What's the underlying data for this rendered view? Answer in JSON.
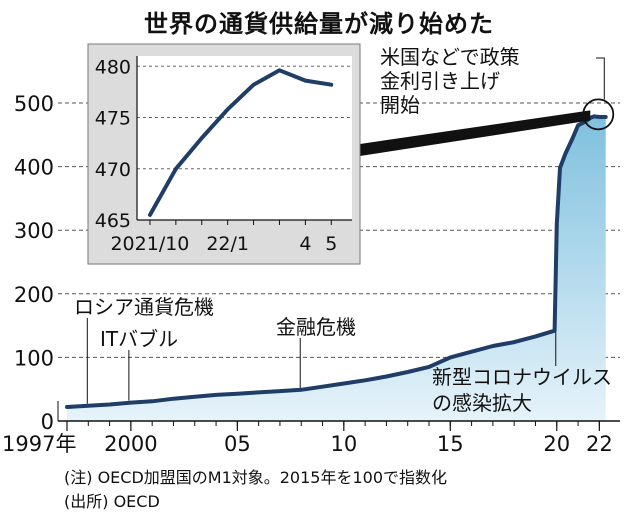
{
  "title": "世界の通貨供給量が減り始めた",
  "notes": {
    "note": "(注) OECD加盟国のM1対象。2015年を100で指数化",
    "source": "(出所) OECD"
  },
  "chart_data": [
    {
      "type": "area",
      "title": "世界の通貨供給量が減り始めた",
      "xlabel": "",
      "ylabel": "",
      "xlim": [
        1997,
        2022.5
      ],
      "ylim": [
        0,
        500
      ],
      "grid": true,
      "yticks": [
        0,
        100,
        200,
        300,
        400,
        500
      ],
      "xticks": [
        {
          "value": 1997,
          "label": "1997年"
        },
        {
          "value": 2000,
          "label": "2000"
        },
        {
          "value": 2005,
          "label": "05"
        },
        {
          "value": 2010,
          "label": "10"
        },
        {
          "value": 2015,
          "label": "15"
        },
        {
          "value": 2020,
          "label": "20"
        },
        {
          "value": 2022,
          "label": "22"
        }
      ],
      "series": [
        {
          "name": "OECD M1 (2015=100)",
          "x": [
            1997,
            1998,
            1999,
            2000,
            2001,
            2002,
            2003,
            2004,
            2005,
            2006,
            2007,
            2008,
            2009,
            2010,
            2011,
            2012,
            2013,
            2014,
            2015,
            2016,
            2017,
            2018,
            2019,
            2019.9,
            2020.0,
            2020.15,
            2020.4,
            2020.75,
            2021.0,
            2021.3,
            2021.6,
            2021.75,
            2022.0,
            2022.3
          ],
          "values": [
            22,
            24,
            26,
            29,
            31,
            35,
            38,
            41,
            43,
            45,
            47,
            49,
            54,
            59,
            64,
            70,
            77,
            85,
            100,
            109,
            118,
            124,
            133,
            142,
            310,
            398,
            420,
            445,
            465,
            470,
            477,
            479,
            478,
            478
          ]
        }
      ],
      "annotations": [
        {
          "text": "ロシア通貨危機",
          "x": 1998
        },
        {
          "text": "ITバブル",
          "x": 2000
        },
        {
          "text": "金融危機",
          "x": 2008
        },
        {
          "text": "新型コロナウイルスの感染拡大",
          "lines": [
            "新型コロナウイルス",
            "の感染拡大"
          ],
          "x": 2020
        },
        {
          "text": "米国などで政策金利引き上げ開始",
          "lines": [
            "米国などで政策",
            "金利引き上げ",
            "開始"
          ],
          "x": 2022
        }
      ]
    },
    {
      "type": "line",
      "title": "",
      "xlabel": "",
      "ylabel": "",
      "ylim": [
        465,
        481
      ],
      "yticks": [
        465,
        470,
        475,
        480
      ],
      "xticks": [
        {
          "value": 0,
          "label": "2021/10"
        },
        {
          "value": 3,
          "label": "22/1"
        },
        {
          "value": 6,
          "label": "4"
        },
        {
          "value": 7,
          "label": "5"
        }
      ],
      "xlim": [
        -0.5,
        7.8
      ],
      "grid": true,
      "series": [
        {
          "name": "OECD M1 (2015=100)",
          "x": [
            0,
            1,
            2,
            3,
            4,
            5,
            6,
            7
          ],
          "values": [
            465.5,
            470,
            473,
            475.8,
            478.2,
            479.6,
            478.6,
            478.2
          ]
        }
      ]
    }
  ]
}
